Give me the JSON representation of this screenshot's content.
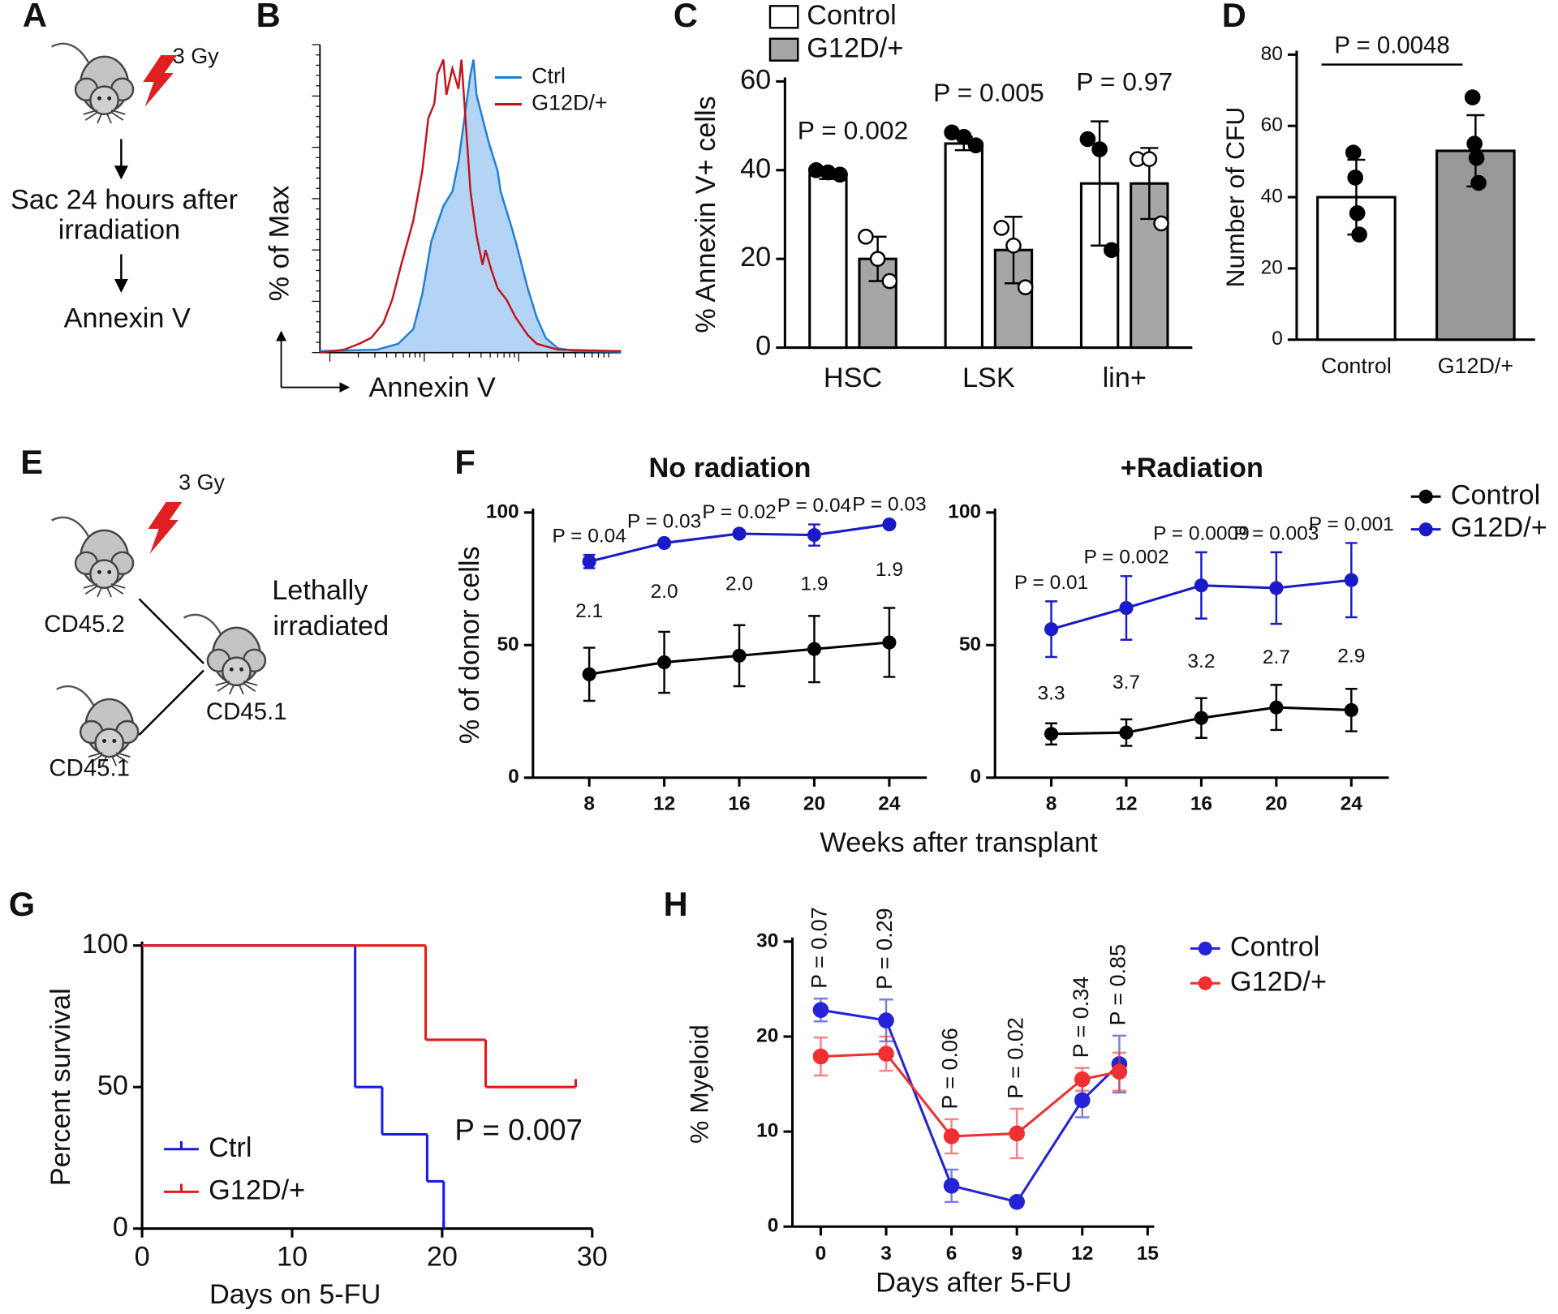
{
  "panel_labels": [
    "A",
    "B",
    "C",
    "D",
    "E",
    "F",
    "G",
    "H"
  ],
  "diagram_a": {
    "dose": "3 Gy",
    "steps": [
      "Sac 24 hours after",
      "irradiation",
      "Annexin V"
    ]
  },
  "diagram_e": {
    "dose": "3 Gy",
    "donor_1": "CD45.2",
    "donor_2": "CD45.1",
    "recipient_lines": [
      "Lethally",
      "irradiated"
    ],
    "recipient": "CD45.1"
  },
  "chart_data": [
    {
      "type": "area",
      "xlabel": "Annexin V",
      "ylabel": "% of Max",
      "xlim": [
        0,
        100
      ],
      "ylim": [
        0,
        100
      ],
      "series": [
        {
          "name": "Ctrl",
          "color": "#1f7fd6",
          "fill": "#b3d4f5",
          "x": [
            0,
            19,
            26,
            31,
            34,
            37,
            41,
            44,
            46,
            48,
            50,
            51,
            52,
            54,
            56,
            59,
            60,
            63,
            65,
            67,
            69,
            72,
            75,
            79,
            85,
            100
          ],
          "values": [
            0.5,
            1,
            3,
            8,
            20,
            38,
            50,
            55,
            65,
            80,
            95,
            100,
            88,
            80,
            72,
            62,
            55,
            45,
            38,
            30,
            22,
            12,
            5,
            1.5,
            0.5,
            0.3
          ]
        },
        {
          "name": "G12D/+",
          "color": "#c0141c",
          "x": [
            0,
            8,
            13,
            17,
            21,
            24,
            27,
            31,
            34,
            36,
            38,
            39,
            41,
            42,
            44,
            46,
            47,
            49,
            50,
            52,
            54,
            55,
            57,
            59,
            62,
            65,
            69,
            72,
            79,
            100
          ],
          "values": [
            0,
            1,
            3,
            5,
            10,
            18,
            30,
            45,
            62,
            80,
            85,
            95,
            100,
            88,
            97,
            90,
            100,
            70,
            55,
            40,
            30,
            35,
            28,
            22,
            18,
            12,
            6,
            3,
            1,
            0.5
          ]
        }
      ]
    },
    {
      "type": "bar",
      "ylabel": "% Annexin V+ cells",
      "categories": [
        "HSC",
        "LSK",
        "lin+"
      ],
      "ylim": [
        0,
        60
      ],
      "yticks": [
        0,
        20,
        40,
        60
      ],
      "series": [
        {
          "name": "Control",
          "color": "#ffffff",
          "marker_fill": "#000000",
          "values": [
            39,
            46,
            37
          ],
          "errors": [
            1,
            1.5,
            14
          ],
          "points": [
            [
              40,
              39.5,
              39
            ],
            [
              48.5,
              47.5,
              45.6
            ],
            [
              47,
              44.7,
              22
            ]
          ]
        },
        {
          "name": "G12D/+",
          "color": "#a6a6a6",
          "marker_fill": "#ffffff",
          "values": [
            20,
            22,
            37
          ],
          "errors": [
            5,
            7.5,
            8
          ],
          "points": [
            [
              25,
              20,
              15
            ],
            [
              27,
              23,
              13.6
            ],
            [
              42.5,
              42.5,
              28
            ]
          ]
        }
      ],
      "annotations": [
        "P = 0.002",
        "P = 0.005",
        "P = 0.97"
      ]
    },
    {
      "type": "bar",
      "ylabel": "Number of CFU",
      "categories": [
        "Control",
        "G12D/+"
      ],
      "ylim": [
        0,
        80
      ],
      "yticks": [
        0,
        20,
        40,
        60,
        80
      ],
      "values": [
        40,
        53
      ],
      "errors": [
        10.5,
        10
      ],
      "colors": [
        "#ffffff",
        "#999999"
      ],
      "marker_fill": "#000000",
      "points": [
        [
          52.5,
          45.5,
          35.5,
          29.5
        ],
        [
          68,
          55,
          51,
          44
        ]
      ],
      "annotation": "P = 0.0048"
    },
    {
      "type": "line",
      "title": "No radiation",
      "ylabel": "% of donor cells",
      "xlabel": "Weeks after transplant",
      "x": [
        8,
        12,
        16,
        20,
        24
      ],
      "xlim": [
        5,
        26
      ],
      "xticks": [
        8,
        12,
        16,
        20,
        24
      ],
      "ylim": [
        0,
        100
      ],
      "yticks": [
        0,
        50,
        100
      ],
      "series": [
        {
          "color": "#000000",
          "values": [
            39,
            43.5,
            46,
            48.5,
            51
          ],
          "errors": [
            10,
            11.5,
            11.5,
            12.5,
            13
          ]
        },
        {
          "color": "#1a1ac8",
          "values": [
            81.5,
            88.5,
            92,
            91.5,
            95.5
          ],
          "errors": [
            2.5,
            1,
            1,
            4,
            0.5
          ]
        }
      ],
      "p_labels": [
        "P = 0.04",
        "P = 0.03",
        "P = 0.02",
        "P = 0.04",
        "P = 0.03"
      ],
      "ratio_labels": [
        "2.1",
        "2.0",
        "2.0",
        "1.9",
        "1.9"
      ]
    },
    {
      "type": "line",
      "title": "+Radiation",
      "x": [
        8,
        12,
        16,
        20,
        24
      ],
      "xlim": [
        5,
        26
      ],
      "xticks": [
        8,
        12,
        16,
        20,
        24
      ],
      "ylim": [
        0,
        100
      ],
      "yticks": [
        0,
        50,
        100
      ],
      "series": [
        {
          "name": "Control",
          "color": "#000000",
          "values": [
            16.5,
            17,
            22.5,
            26.5,
            25.5
          ],
          "errors": [
            4,
            5,
            7.5,
            8.5,
            8
          ]
        },
        {
          "name": "G12D/+",
          "color": "#1a1ac8",
          "values": [
            56,
            64,
            72.5,
            71.5,
            74.5
          ],
          "errors": [
            10.5,
            12,
            12.5,
            13.5,
            14
          ]
        }
      ],
      "p_labels": [
        "P = 0.01",
        "P = 0.002",
        "P = 0.0009",
        "P = 0.003",
        "P = 0.001"
      ],
      "ratio_labels": [
        "3.3",
        "3.7",
        "3.2",
        "2.7",
        "2.9"
      ]
    },
    {
      "type": "step",
      "ylabel": "Percent survival",
      "xlabel": "Days on 5-FU",
      "xlim": [
        0,
        30
      ],
      "xticks": [
        0,
        10,
        20,
        30
      ],
      "ylim": [
        0,
        100
      ],
      "yticks": [
        0,
        50,
        100
      ],
      "series": [
        {
          "name": "Ctrl",
          "color": "#1a1ae6",
          "x": [
            0,
            14.2,
            16,
            19,
            20.1
          ],
          "values": [
            100,
            50,
            33.3,
            16.7,
            0
          ]
        },
        {
          "name": "G12D/+",
          "color": "#e61a1a",
          "x": [
            0,
            18.9,
            22.9,
            28.9
          ],
          "values": [
            100,
            66.7,
            50,
            50
          ]
        }
      ],
      "annotation": "P = 0.007"
    },
    {
      "type": "line",
      "ylabel": "% Myeloid",
      "xlabel": "Days after 5-FU",
      "x": [
        0,
        3,
        6,
        9,
        12,
        13.7
      ],
      "xlim": [
        -1.3,
        15.3
      ],
      "xticks": [
        0,
        3,
        6,
        9,
        12,
        15
      ],
      "ylim": [
        0,
        30
      ],
      "yticks": [
        0,
        10,
        20,
        30
      ],
      "series": [
        {
          "name": "Control",
          "color": "#2424d6",
          "values": [
            22.8,
            21.7,
            4.3,
            2.6,
            13.3,
            17.1
          ],
          "errors": [
            1.2,
            2.2,
            1.7,
            0.3,
            1.8,
            3
          ]
        },
        {
          "name": "G12D/+",
          "color": "#f03030",
          "values": [
            17.9,
            18.2,
            9.5,
            9.8,
            15.5,
            16.3
          ],
          "errors": [
            2,
            1.8,
            1.8,
            2.6,
            1.2,
            2
          ]
        }
      ],
      "p_labels": [
        "P = 0.07",
        "P = 0.29",
        "P = 0.06",
        "P = 0.02",
        "P = 0.34",
        "P = 0.85"
      ],
      "p_rotated": true
    }
  ]
}
